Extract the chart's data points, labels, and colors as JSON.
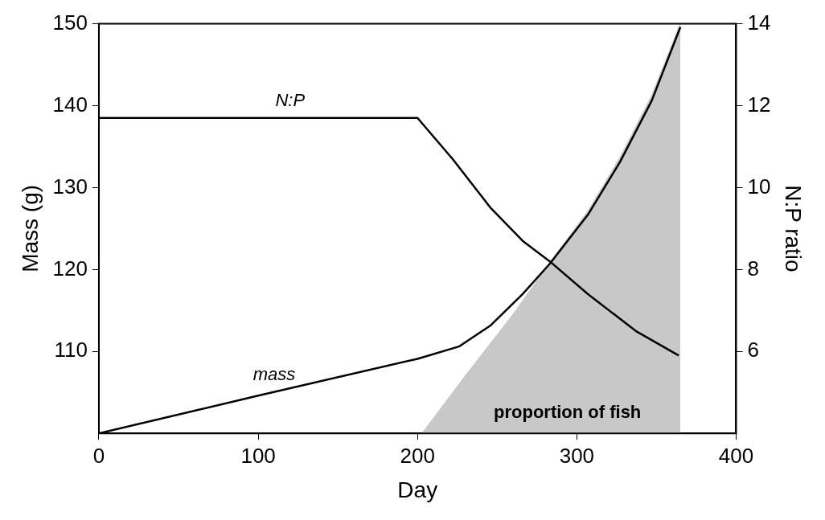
{
  "chart_data": {
    "type": "line",
    "xlabel": "Day",
    "ylabel": "Mass (g)",
    "y2label": "N:P ratio",
    "xlim": [
      0,
      400
    ],
    "xticks": [
      0,
      100,
      200,
      300,
      400
    ],
    "ylim": [
      100,
      150
    ],
    "yticks": [
      110,
      120,
      130,
      140,
      150
    ],
    "y2lim": [
      4,
      14
    ],
    "y2ticks": [
      6,
      8,
      10,
      12,
      14
    ],
    "grid": false,
    "legend": false,
    "marker": "none",
    "line_style": "solid",
    "series": [
      {
        "name": "proportion of fish",
        "type": "area",
        "color": "#c8c8c8",
        "x": [
          203,
          230,
          260,
          283,
          307,
          327,
          347,
          365
        ],
        "values": [
          100,
          107,
          114.5,
          120.8,
          127.1,
          133.6,
          141.2,
          150
        ]
      },
      {
        "name": "mass",
        "type": "line",
        "color": "#000000",
        "x": [
          0,
          100,
          200,
          226,
          246,
          266,
          283,
          307,
          327,
          347,
          365
        ],
        "values": [
          100,
          104.6,
          109.1,
          110.6,
          113.2,
          117,
          120.7,
          126.7,
          133.1,
          140.6,
          149.6
        ]
      },
      {
        "name": "N:P",
        "type": "line",
        "axis": "y2",
        "color": "#000000",
        "x": [
          0,
          200,
          222,
          246,
          266,
          283,
          307,
          337,
          364
        ],
        "values": [
          11.7,
          11.7,
          10.7,
          9.5,
          8.7,
          8.2,
          7.4,
          6.5,
          5.9
        ]
      }
    ]
  }
}
